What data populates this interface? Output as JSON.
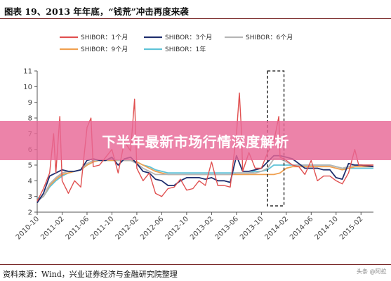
{
  "title": "图表 19、2013 年年底，“钱荒”冲击再度来袭",
  "source": "资料来源：Wind，兴业证券经济与金融研究院整理",
  "watermark": "头条 @阿拉",
  "banner": "下半年最新市场行情深度解析",
  "colors": {
    "on": "#e05050",
    "m3": "#1f2f6e",
    "m6": "#b5b5b5",
    "m9": "#f0a050",
    "y1": "#5fc3d8"
  },
  "chart_data": {
    "type": "line",
    "ylim": [
      2,
      11
    ],
    "yticks": [
      "2",
      "3",
      "4",
      "5",
      "6",
      "7",
      "8",
      "9",
      "10",
      "11"
    ],
    "xlim": [
      "2010-10",
      "2015-04"
    ],
    "xticks": [
      "2010-10",
      "2011-02",
      "2011-06",
      "2011-10",
      "2012-02",
      "2012-06",
      "2012-10",
      "2013-02",
      "2013-06",
      "2013-10",
      "2014-02",
      "2014-06",
      "2014-10",
      "2015-02"
    ],
    "legend": "top",
    "series": [
      {
        "name": "SHIBOR：1个月",
        "color_key": "on",
        "points": [
          [
            "2010-10",
            2.7
          ],
          [
            "2010-11",
            3.5
          ],
          [
            "2010-12",
            4.5
          ],
          [
            "2010-12-20",
            7.0
          ],
          [
            "2011-01",
            4.5
          ],
          [
            "2011-01-20",
            8.1
          ],
          [
            "2011-02",
            4.0
          ],
          [
            "2011-03",
            3.2
          ],
          [
            "2011-04",
            4.0
          ],
          [
            "2011-05",
            3.6
          ],
          [
            "2011-06",
            7.4
          ],
          [
            "2011-06-20",
            8.0
          ],
          [
            "2011-07",
            4.9
          ],
          [
            "2011-08",
            5.0
          ],
          [
            "2011-09",
            5.5
          ],
          [
            "2011-10",
            6.0
          ],
          [
            "2011-11",
            4.5
          ],
          [
            "2011-12",
            6.5
          ],
          [
            "2012-01",
            5.9
          ],
          [
            "2012-01-20",
            9.2
          ],
          [
            "2012-02",
            4.8
          ],
          [
            "2012-03",
            4.0
          ],
          [
            "2012-04",
            4.5
          ],
          [
            "2012-05",
            3.2
          ],
          [
            "2012-06",
            3.0
          ],
          [
            "2012-07",
            3.5
          ],
          [
            "2012-08",
            3.6
          ],
          [
            "2012-09",
            4.1
          ],
          [
            "2012-10",
            3.4
          ],
          [
            "2012-11",
            3.5
          ],
          [
            "2012-12",
            4.0
          ],
          [
            "2013-01",
            3.7
          ],
          [
            "2013-02",
            5.2
          ],
          [
            "2013-03",
            3.7
          ],
          [
            "2013-04",
            3.7
          ],
          [
            "2013-05",
            3.6
          ],
          [
            "2013-06",
            7.0
          ],
          [
            "2013-06-15",
            9.6
          ],
          [
            "2013-06-25",
            7.2
          ],
          [
            "2013-07",
            4.6
          ],
          [
            "2013-08",
            5.8
          ],
          [
            "2013-09",
            4.8
          ],
          [
            "2013-10",
            4.8
          ],
          [
            "2013-11",
            5.8
          ],
          [
            "2013-12",
            6.5
          ],
          [
            "2013-12-25",
            8.1
          ],
          [
            "2014-01",
            5.5
          ],
          [
            "2014-02",
            5.3
          ],
          [
            "2014-03",
            5.0
          ],
          [
            "2014-04",
            4.9
          ],
          [
            "2014-05",
            4.4
          ],
          [
            "2014-06",
            5.3
          ],
          [
            "2014-07",
            4.0
          ],
          [
            "2014-08",
            4.3
          ],
          [
            "2014-09",
            4.3
          ],
          [
            "2014-10",
            4.0
          ],
          [
            "2014-11",
            3.8
          ],
          [
            "2014-12",
            4.5
          ],
          [
            "2015-01",
            6.0
          ],
          [
            "2015-01-20",
            5.0
          ],
          [
            "2015-02",
            5.0
          ],
          [
            "2015-04",
            5.0
          ]
        ]
      },
      {
        "name": "SHIBOR：3个月",
        "color_key": "m3",
        "points": [
          [
            "2010-10",
            2.6
          ],
          [
            "2010-11",
            3.2
          ],
          [
            "2010-12",
            4.3
          ],
          [
            "2011-01",
            4.5
          ],
          [
            "2011-02",
            4.7
          ],
          [
            "2011-03",
            4.6
          ],
          [
            "2011-04",
            4.6
          ],
          [
            "2011-05",
            4.7
          ],
          [
            "2011-06",
            5.3
          ],
          [
            "2011-07",
            5.4
          ],
          [
            "2011-08",
            5.3
          ],
          [
            "2011-09",
            5.3
          ],
          [
            "2011-10",
            5.5
          ],
          [
            "2011-11",
            5.0
          ],
          [
            "2011-12",
            5.4
          ],
          [
            "2012-01",
            5.5
          ],
          [
            "2012-02",
            5.1
          ],
          [
            "2012-03",
            4.6
          ],
          [
            "2012-04",
            4.5
          ],
          [
            "2012-05",
            4.1
          ],
          [
            "2012-06",
            4.0
          ],
          [
            "2012-07",
            3.7
          ],
          [
            "2012-08",
            3.7
          ],
          [
            "2012-09",
            4.0
          ],
          [
            "2012-10",
            4.2
          ],
          [
            "2012-11",
            4.2
          ],
          [
            "2012-12",
            4.2
          ],
          [
            "2013-01",
            4.1
          ],
          [
            "2013-02",
            4.2
          ],
          [
            "2013-03",
            4.0
          ],
          [
            "2013-04",
            4.0
          ],
          [
            "2013-05",
            3.9
          ],
          [
            "2013-06",
            5.6
          ],
          [
            "2013-07",
            4.6
          ],
          [
            "2013-08",
            4.6
          ],
          [
            "2013-09",
            4.7
          ],
          [
            "2013-10",
            4.8
          ],
          [
            "2013-11",
            5.2
          ],
          [
            "2013-12",
            5.6
          ],
          [
            "2014-01",
            5.6
          ],
          [
            "2014-02",
            5.5
          ],
          [
            "2014-03",
            5.4
          ],
          [
            "2014-04",
            5.1
          ],
          [
            "2014-05",
            4.8
          ],
          [
            "2014-06",
            4.8
          ],
          [
            "2014-07",
            4.8
          ],
          [
            "2014-08",
            4.7
          ],
          [
            "2014-09",
            4.7
          ],
          [
            "2014-10",
            4.2
          ],
          [
            "2014-11",
            4.1
          ],
          [
            "2014-12",
            5.1
          ],
          [
            "2015-01",
            5.0
          ],
          [
            "2015-02",
            5.0
          ],
          [
            "2015-04",
            4.9
          ]
        ]
      },
      {
        "name": "SHIBOR：6个月",
        "color_key": "m6",
        "points": [
          [
            "2010-10",
            2.7
          ],
          [
            "2010-11",
            3.0
          ],
          [
            "2010-12",
            3.8
          ],
          [
            "2011-01",
            4.2
          ],
          [
            "2011-02",
            4.5
          ],
          [
            "2011-03",
            4.6
          ],
          [
            "2011-04",
            4.6
          ],
          [
            "2011-05",
            4.7
          ],
          [
            "2011-06",
            5.1
          ],
          [
            "2011-07",
            5.3
          ],
          [
            "2011-08",
            5.3
          ],
          [
            "2011-09",
            5.3
          ],
          [
            "2011-10",
            5.4
          ],
          [
            "2011-11",
            5.3
          ],
          [
            "2011-12",
            5.3
          ],
          [
            "2012-01",
            5.3
          ],
          [
            "2012-02",
            5.1
          ],
          [
            "2012-03",
            4.8
          ],
          [
            "2012-04",
            4.6
          ],
          [
            "2012-05",
            4.4
          ],
          [
            "2012-06",
            4.4
          ],
          [
            "2012-07",
            4.4
          ],
          [
            "2012-08",
            4.4
          ],
          [
            "2012-09",
            4.4
          ],
          [
            "2012-10",
            4.4
          ],
          [
            "2012-11",
            4.4
          ],
          [
            "2012-12",
            4.4
          ],
          [
            "2013-01",
            4.4
          ],
          [
            "2013-02",
            4.4
          ],
          [
            "2013-03",
            4.4
          ],
          [
            "2013-04",
            4.4
          ],
          [
            "2013-05",
            4.4
          ],
          [
            "2013-06",
            4.5
          ],
          [
            "2013-07",
            4.5
          ],
          [
            "2013-08",
            4.5
          ],
          [
            "2013-09",
            4.5
          ],
          [
            "2013-10",
            4.6
          ],
          [
            "2013-11",
            4.8
          ],
          [
            "2013-12",
            5.4
          ],
          [
            "2014-01",
            5.4
          ],
          [
            "2014-02",
            5.2
          ],
          [
            "2014-03",
            5.0
          ],
          [
            "2014-04",
            5.0
          ],
          [
            "2014-05",
            5.0
          ],
          [
            "2014-06",
            5.0
          ],
          [
            "2014-07",
            5.0
          ],
          [
            "2014-08",
            5.0
          ],
          [
            "2014-09",
            5.0
          ],
          [
            "2014-10",
            4.9
          ],
          [
            "2014-11",
            4.8
          ],
          [
            "2014-12",
            4.9
          ],
          [
            "2015-01",
            5.0
          ],
          [
            "2015-02",
            5.0
          ],
          [
            "2015-04",
            5.0
          ]
        ]
      },
      {
        "name": "SHIBOR：9个月",
        "color_key": "m9",
        "points": [
          [
            "2010-10",
            2.8
          ],
          [
            "2010-11",
            3.0
          ],
          [
            "2010-12",
            3.7
          ],
          [
            "2011-01",
            4.1
          ],
          [
            "2011-02",
            4.4
          ],
          [
            "2011-03",
            4.5
          ],
          [
            "2011-04",
            4.6
          ],
          [
            "2011-05",
            4.7
          ],
          [
            "2011-06",
            5.0
          ],
          [
            "2011-07",
            5.2
          ],
          [
            "2011-08",
            5.3
          ],
          [
            "2011-09",
            5.3
          ],
          [
            "2011-10",
            5.3
          ],
          [
            "2011-11",
            5.3
          ],
          [
            "2011-12",
            5.3
          ],
          [
            "2012-01",
            5.3
          ],
          [
            "2012-02",
            5.2
          ],
          [
            "2012-03",
            5.0
          ],
          [
            "2012-04",
            4.8
          ],
          [
            "2012-05",
            4.6
          ],
          [
            "2012-06",
            4.5
          ],
          [
            "2012-07",
            4.4
          ],
          [
            "2012-08",
            4.4
          ],
          [
            "2012-09",
            4.4
          ],
          [
            "2012-10",
            4.4
          ],
          [
            "2012-11",
            4.4
          ],
          [
            "2012-12",
            4.4
          ],
          [
            "2013-01",
            4.4
          ],
          [
            "2013-02",
            4.4
          ],
          [
            "2013-03",
            4.4
          ],
          [
            "2013-04",
            4.4
          ],
          [
            "2013-05",
            4.4
          ],
          [
            "2013-06",
            4.4
          ],
          [
            "2013-07",
            4.4
          ],
          [
            "2013-08",
            4.4
          ],
          [
            "2013-09",
            4.4
          ],
          [
            "2013-10",
            4.4
          ],
          [
            "2013-11",
            4.4
          ],
          [
            "2013-12",
            4.4
          ],
          [
            "2014-01",
            4.5
          ],
          [
            "2014-02",
            4.8
          ],
          [
            "2014-03",
            4.9
          ],
          [
            "2014-04",
            4.9
          ],
          [
            "2014-05",
            4.9
          ],
          [
            "2014-06",
            4.9
          ],
          [
            "2014-07",
            4.9
          ],
          [
            "2014-08",
            4.9
          ],
          [
            "2014-09",
            4.9
          ],
          [
            "2014-10",
            4.8
          ],
          [
            "2014-11",
            4.7
          ],
          [
            "2014-12",
            4.8
          ],
          [
            "2015-01",
            4.9
          ],
          [
            "2015-02",
            4.9
          ],
          [
            "2015-04",
            4.9
          ]
        ]
      },
      {
        "name": "SHIBOR：1年",
        "color_key": "y1",
        "points": [
          [
            "2010-10",
            2.9
          ],
          [
            "2010-11",
            3.0
          ],
          [
            "2010-12",
            3.6
          ],
          [
            "2011-01",
            4.0
          ],
          [
            "2011-02",
            4.3
          ],
          [
            "2011-03",
            4.5
          ],
          [
            "2011-04",
            4.6
          ],
          [
            "2011-05",
            4.7
          ],
          [
            "2011-06",
            5.0
          ],
          [
            "2011-07",
            5.2
          ],
          [
            "2011-08",
            5.3
          ],
          [
            "2011-09",
            5.3
          ],
          [
            "2011-10",
            5.3
          ],
          [
            "2011-11",
            5.3
          ],
          [
            "2011-12",
            5.3
          ],
          [
            "2012-01",
            5.3
          ],
          [
            "2012-02",
            5.2
          ],
          [
            "2012-03",
            5.0
          ],
          [
            "2012-04",
            4.9
          ],
          [
            "2012-05",
            4.7
          ],
          [
            "2012-06",
            4.6
          ],
          [
            "2012-07",
            4.5
          ],
          [
            "2012-08",
            4.5
          ],
          [
            "2012-09",
            4.5
          ],
          [
            "2012-10",
            4.5
          ],
          [
            "2012-11",
            4.5
          ],
          [
            "2012-12",
            4.5
          ],
          [
            "2013-01",
            4.5
          ],
          [
            "2013-02",
            4.5
          ],
          [
            "2013-03",
            4.5
          ],
          [
            "2013-04",
            4.5
          ],
          [
            "2013-05",
            4.5
          ],
          [
            "2013-06",
            4.5
          ],
          [
            "2013-07",
            4.5
          ],
          [
            "2013-08",
            4.5
          ],
          [
            "2013-09",
            4.6
          ],
          [
            "2013-10",
            4.6
          ],
          [
            "2013-11",
            4.7
          ],
          [
            "2013-12",
            5.0
          ],
          [
            "2014-01",
            5.0
          ],
          [
            "2014-02",
            5.0
          ],
          [
            "2014-03",
            5.0
          ],
          [
            "2014-04",
            5.0
          ],
          [
            "2014-05",
            5.0
          ],
          [
            "2014-06",
            5.0
          ],
          [
            "2014-07",
            5.0
          ],
          [
            "2014-08",
            5.0
          ],
          [
            "2014-09",
            5.0
          ],
          [
            "2014-10",
            4.9
          ],
          [
            "2014-11",
            4.8
          ],
          [
            "2014-12",
            4.8
          ],
          [
            "2015-01",
            4.8
          ],
          [
            "2015-02",
            4.8
          ],
          [
            "2015-04",
            4.8
          ]
        ]
      }
    ],
    "highlight": {
      "x_range": [
        "2013-11",
        "2014-01-20"
      ],
      "y_range": [
        2.4,
        11
      ]
    }
  }
}
